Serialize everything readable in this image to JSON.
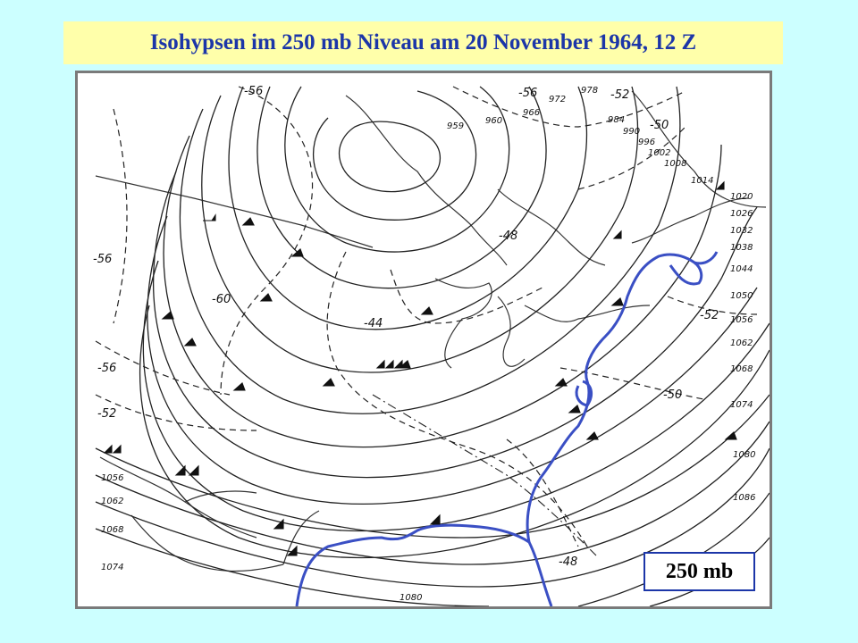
{
  "title": "Isohypsen im 250 mb Niveau am 20 November 1964, 12 Z",
  "level_label": "250 mb",
  "colors": {
    "background": "#ccffff",
    "title_banner": "#ffffaa",
    "title_text": "#1c36a8",
    "coast_highlight": "#3a4fc4",
    "contour": "#222222"
  },
  "height_contour_labels": [
    "959",
    "960",
    "966",
    "972",
    "978",
    "984",
    "990",
    "996",
    "1002",
    "1008",
    "1014",
    "1020",
    "1026",
    "1032",
    "1038",
    "1044",
    "1050",
    "1056",
    "1062",
    "1068",
    "1074",
    "1080",
    "1086",
    "1056",
    "1062",
    "1068",
    "1074",
    "1080"
  ],
  "temperature_labels": [
    "-56",
    "-56",
    "-52",
    "-50",
    "-48",
    "-44",
    "-60",
    "-56",
    "-56",
    "-52",
    "-52",
    "-50",
    "-48"
  ]
}
